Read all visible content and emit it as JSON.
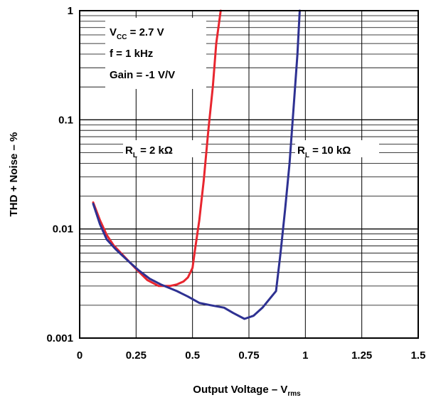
{
  "chart_data": {
    "type": "line",
    "xlabel": {
      "main": "Output Voltage – V",
      "sub": "rms"
    },
    "ylabel": "THD + Noise – %",
    "xlim": [
      0,
      1.5
    ],
    "ylim": [
      0.001,
      1
    ],
    "yscale": "log",
    "grid": true,
    "x_ticks": [
      "0",
      "0.25",
      "0.5",
      "0.75",
      "1",
      "1.25",
      "1.5"
    ],
    "y_ticks": [
      "0.001",
      "0.01",
      "0.1",
      "1"
    ],
    "conditions": {
      "vcc": {
        "main": "V",
        "sub": "CC",
        "rest": " = 2.7 V"
      },
      "freq": "f = 1 kHz",
      "gain": "Gain = -1 V/V"
    },
    "series": [
      {
        "label": {
          "main": "R",
          "sub": "L",
          "rest": " = 2 kΩ"
        },
        "color": "#e8262f",
        "points": [
          [
            0.06,
            0.0175
          ],
          [
            0.09,
            0.012
          ],
          [
            0.12,
            0.0088
          ],
          [
            0.15,
            0.0071
          ],
          [
            0.19,
            0.0058
          ],
          [
            0.25,
            0.0043
          ],
          [
            0.3,
            0.0034
          ],
          [
            0.35,
            0.003
          ],
          [
            0.4,
            0.003
          ],
          [
            0.43,
            0.0031
          ],
          [
            0.46,
            0.0033
          ],
          [
            0.48,
            0.0036
          ],
          [
            0.5,
            0.0044
          ],
          [
            0.51,
            0.0062
          ],
          [
            0.53,
            0.012
          ],
          [
            0.55,
            0.028
          ],
          [
            0.57,
            0.08
          ],
          [
            0.59,
            0.2
          ],
          [
            0.605,
            0.5
          ],
          [
            0.625,
            1.0
          ]
        ]
      },
      {
        "label": {
          "main": "R",
          "sub": "L",
          "rest": " = 10 kΩ"
        },
        "color": "#2e3192",
        "points": [
          [
            0.06,
            0.017
          ],
          [
            0.09,
            0.011
          ],
          [
            0.12,
            0.008
          ],
          [
            0.16,
            0.0065
          ],
          [
            0.21,
            0.0052
          ],
          [
            0.26,
            0.0042
          ],
          [
            0.31,
            0.0035
          ],
          [
            0.36,
            0.0031
          ],
          [
            0.43,
            0.0027
          ],
          [
            0.48,
            0.0024
          ],
          [
            0.53,
            0.0021
          ],
          [
            0.58,
            0.002
          ],
          [
            0.64,
            0.0019
          ],
          [
            0.68,
            0.0017
          ],
          [
            0.73,
            0.0015
          ],
          [
            0.77,
            0.0016
          ],
          [
            0.81,
            0.0019
          ],
          [
            0.87,
            0.0027
          ],
          [
            0.89,
            0.006
          ],
          [
            0.91,
            0.015
          ],
          [
            0.93,
            0.04
          ],
          [
            0.95,
            0.15
          ],
          [
            0.965,
            0.4
          ],
          [
            0.975,
            1.0
          ]
        ]
      }
    ]
  }
}
